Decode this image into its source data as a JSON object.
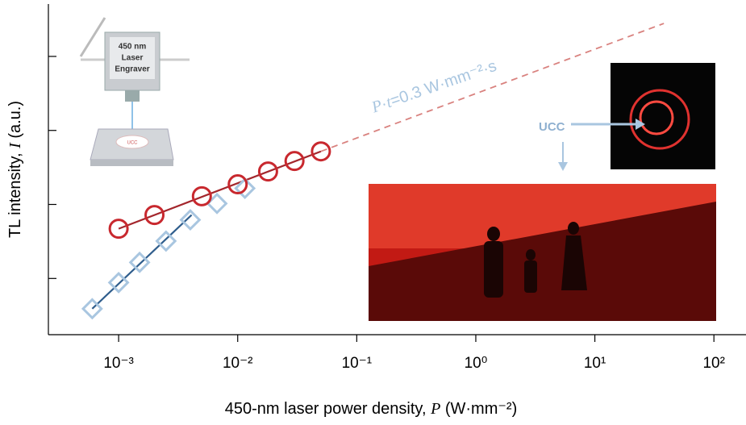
{
  "chart_data": {
    "type": "scatter",
    "x_label": [
      "450-nm laser power density, ",
      "P",
      " (W·mm⁻²)"
    ],
    "y_label": [
      "TL intensity, ",
      "I",
      " (a.u.)"
    ],
    "xscale": "log",
    "yscale": "log",
    "xlim": [
      0.000257,
      186
    ],
    "ylim": [
      1.74,
      51000
    ],
    "xticks": [
      {
        "value": 0.001,
        "label": "10⁻³"
      },
      {
        "value": 0.01,
        "label": "10⁻²"
      },
      {
        "value": 0.1,
        "label": "10⁻¹"
      },
      {
        "value": 1,
        "label": "10⁰"
      },
      {
        "value": 10,
        "label": "10¹"
      },
      {
        "value": 100,
        "label": "10²"
      }
    ],
    "yticks": [
      10,
      100,
      1000,
      10000
    ],
    "series": [
      {
        "color": "#c8282e",
        "marker": "circle",
        "x": [
          0.001,
          0.002,
          0.005,
          0.01,
          0.018,
          0.03,
          0.05
        ],
        "values": [
          47,
          72,
          129,
          187,
          279,
          386,
          521
        ]
      },
      {
        "color": "#a9c6e0",
        "marker": "diamond",
        "x": [
          0.0006,
          0.001,
          0.0015,
          0.0025,
          0.004,
          0.0067,
          0.0115
        ],
        "values": [
          3.9,
          8.8,
          16.5,
          32,
          62,
          103,
          165
        ]
      }
    ],
    "fits": [
      {
        "color": "#2f5d8c",
        "x": [
          0.0006,
          0.0041
        ],
        "values": [
          3.9,
          72
        ]
      },
      {
        "color": "#a3262c",
        "x": [
          0.001,
          0.05
        ],
        "values": [
          47,
          521
        ]
      },
      {
        "color": "#d9827f",
        "dashed": true,
        "x": [
          0.05,
          38
        ],
        "values": [
          521,
          27900
        ]
      }
    ],
    "annotation": [
      "P",
      "·",
      "t",
      "=0.3 W·mm⁻²·s"
    ],
    "illustration": {
      "engraver": [
        "450 nm",
        "Laser",
        "Engraver"
      ],
      "plate_label": "UCC",
      "ucc_label": "UCC"
    }
  }
}
